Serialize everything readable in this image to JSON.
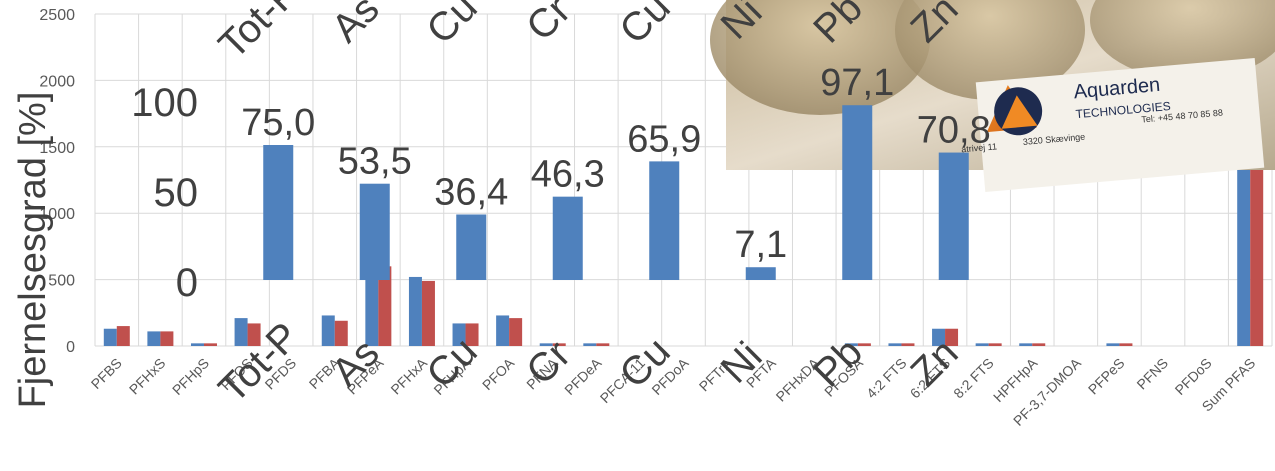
{
  "chart_data": [
    {
      "type": "bar",
      "title": "",
      "xlabel": "",
      "ylabel": "",
      "ylim": [
        0,
        2500
      ],
      "yticks": [
        0,
        500,
        1000,
        1500,
        2000,
        2500
      ],
      "yticklabels": [
        "0",
        "500",
        "1000",
        "1500",
        "2000",
        "2500"
      ],
      "grid": true,
      "categories": [
        "PFBS",
        "PFHxS",
        "PFHpS",
        "PFOS",
        "PFDS",
        "PFBA",
        "PFPeA",
        "PFHxA",
        "PFHpA",
        "PFOA",
        "PFNA",
        "PFDeA",
        "PFCA-11",
        "PFDoA",
        "PFTrA",
        "PFTA",
        "PFHxDA",
        "PFOSA",
        "4:2 FTS",
        "6:2 FTS",
        "8:2 FTS",
        "HPFHpA",
        "PF-3,7-DMOA",
        "PFPeS",
        "PFNS",
        "PFDoS",
        "Sum PFAS"
      ],
      "series": [
        {
          "color": "#4f81bd",
          "values": [
            130,
            110,
            20,
            210,
            0,
            230,
            580,
            520,
            170,
            230,
            20,
            20,
            0,
            0,
            0,
            0,
            0,
            20,
            20,
            130,
            20,
            20,
            0,
            20,
            0,
            0,
            2310
          ]
        },
        {
          "color": "#c0504d",
          "values": [
            150,
            110,
            20,
            170,
            0,
            190,
            600,
            490,
            170,
            210,
            20,
            20,
            0,
            0,
            0,
            0,
            0,
            20,
            20,
            130,
            20,
            20,
            0,
            20,
            0,
            0,
            2210
          ]
        }
      ]
    },
    {
      "type": "bar",
      "title": "",
      "ylabel": "Fjernelsesgrad [%]",
      "ylim": [
        0,
        100
      ],
      "yticks": [
        0,
        50,
        100
      ],
      "yticklabels": [
        "0",
        "50",
        "100"
      ],
      "categories": [
        "Tot-P",
        "As",
        "Cu",
        "Cr",
        "Cu",
        "Ni",
        "Pb",
        "Zn"
      ],
      "series": [
        {
          "color": "#4f81bd",
          "values": [
            75.0,
            53.5,
            36.4,
            46.3,
            65.9,
            7.1,
            97.1,
            70.8
          ],
          "labels": [
            "75,0",
            "53,5",
            "36,4",
            "46,3",
            "65,9",
            "7,1",
            "97,1",
            "70,8"
          ]
        }
      ],
      "top_labels": [
        "Tot-P",
        "As",
        "Cu",
        "Cr",
        "Cu",
        "Ni",
        "Pb",
        "Zn"
      ]
    }
  ],
  "photo": {
    "logo_name": "Aquarden",
    "logo_tagline": "TECHNOLOGIES",
    "address_text": "3320 Skævinge",
    "phone_text": "Tel: +45 48 70 85 88",
    "street_text": "atrivej 11"
  }
}
